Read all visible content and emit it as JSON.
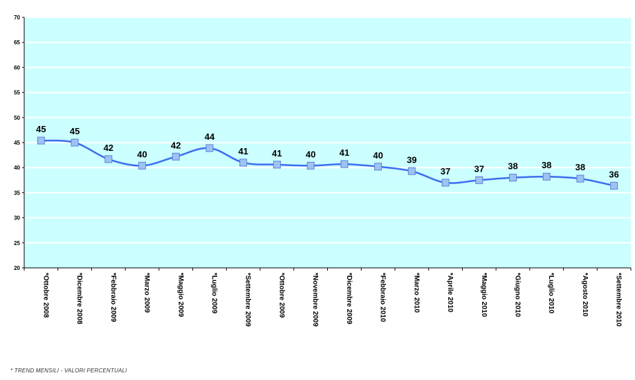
{
  "chart_data": {
    "type": "line",
    "title": "",
    "xlabel": "",
    "ylabel": "",
    "ylim": [
      20,
      70
    ],
    "yticks": [
      20,
      25,
      30,
      35,
      40,
      45,
      50,
      55,
      60,
      65,
      70
    ],
    "grid": true,
    "legend": "none",
    "categories": [
      "*Ottobre 2008",
      "*Dicembre 2008",
      "*Febbraio 2009",
      "*Marzo 2009",
      "*Maggio 2009",
      "*Luglio 2009",
      "*Settembre 2009",
      "*Ottobre 2009",
      "*Novembre 2009",
      "*Dicembre 2009",
      "*Febbraio 2010",
      "*Marzo 2010",
      "*Aprile 2010",
      "*Maggio 2010",
      "*Giugno 2010",
      "*Luglio 2010",
      "*Agosto 2010",
      "*Settembre 2010"
    ],
    "series": [
      {
        "values": [
          45.4,
          45.0,
          41.7,
          40.4,
          42.2,
          43.9,
          41.0,
          40.6,
          40.4,
          40.7,
          40.2,
          39.3,
          37.0,
          37.5,
          38.0,
          38.2,
          37.8,
          36.4
        ],
        "data_labels": [
          "45",
          "45",
          "42",
          "40",
          "42",
          "44",
          "41",
          "41",
          "40",
          "41",
          "40",
          "39",
          "37",
          "37",
          "38",
          "38",
          "38",
          "36"
        ],
        "color": "#3d6ef0",
        "marker_fill": "#9ec3f2",
        "marker_stroke": "#5b7fd6"
      }
    ],
    "plot_background": "#ccffff",
    "gridline_color": "#ffffff"
  },
  "footnote": "* TREND MENSILI - VALORI PERCENTUALI"
}
